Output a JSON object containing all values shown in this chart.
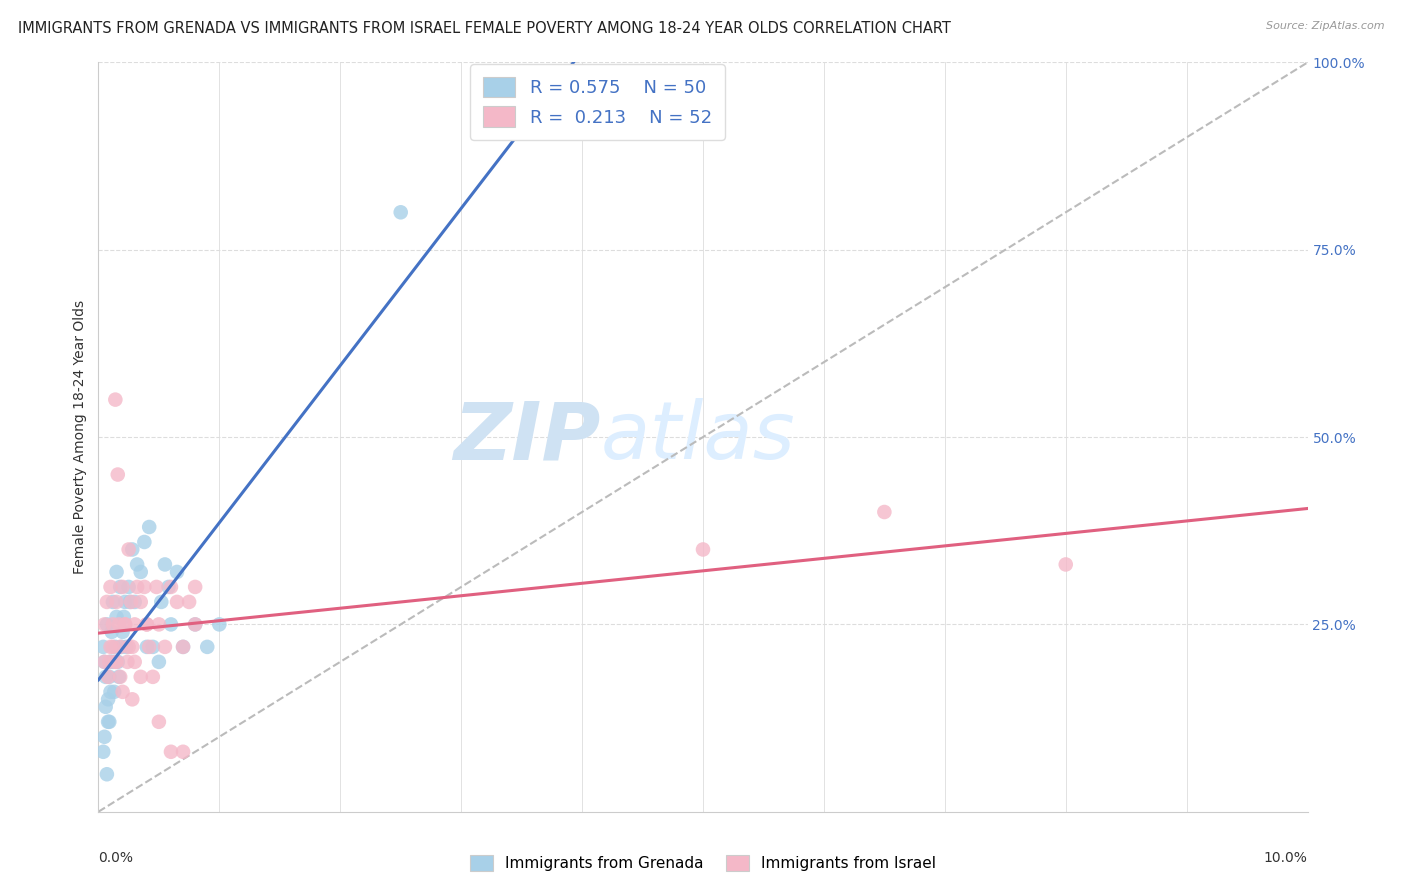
{
  "title": "IMMIGRANTS FROM GRENADA VS IMMIGRANTS FROM ISRAEL FEMALE POVERTY AMONG 18-24 YEAR OLDS CORRELATION CHART",
  "source": "Source: ZipAtlas.com",
  "ylabel": "Female Poverty Among 18-24 Year Olds",
  "xmin": 0.0,
  "xmax": 10.0,
  "ymin": 0.0,
  "ymax": 100.0,
  "grenada_R": 0.575,
  "grenada_N": 50,
  "israel_R": 0.213,
  "israel_N": 52,
  "grenada_color": "#a8d0e8",
  "israel_color": "#f4b8c8",
  "grenada_trend_color": "#4472c4",
  "israel_trend_color": "#e06080",
  "accent_color": "#4472c4",
  "title_fontsize": 10.5,
  "axis_label_fontsize": 10,
  "tick_fontsize": 10,
  "grenada_x": [
    0.04,
    0.05,
    0.06,
    0.07,
    0.08,
    0.09,
    0.1,
    0.11,
    0.12,
    0.13,
    0.14,
    0.15,
    0.16,
    0.17,
    0.18,
    0.19,
    0.2,
    0.21,
    0.22,
    0.23,
    0.25,
    0.26,
    0.28,
    0.3,
    0.32,
    0.35,
    0.38,
    0.4,
    0.42,
    0.45,
    0.5,
    0.52,
    0.55,
    0.58,
    0.6,
    0.65,
    0.7,
    0.8,
    0.9,
    1.0,
    0.04,
    0.05,
    0.06,
    0.07,
    0.09,
    0.1,
    0.08,
    0.12,
    0.15,
    2.5
  ],
  "grenada_y": [
    22,
    20,
    18,
    25,
    15,
    12,
    20,
    24,
    28,
    16,
    22,
    26,
    20,
    18,
    30,
    22,
    24,
    26,
    28,
    22,
    30,
    28,
    35,
    28,
    33,
    32,
    36,
    22,
    38,
    22,
    20,
    28,
    33,
    30,
    25,
    32,
    22,
    25,
    22,
    25,
    8,
    10,
    14,
    5,
    18,
    16,
    12,
    20,
    32,
    80
  ],
  "israel_x": [
    0.05,
    0.07,
    0.09,
    0.1,
    0.12,
    0.14,
    0.15,
    0.17,
    0.18,
    0.2,
    0.22,
    0.24,
    0.25,
    0.27,
    0.28,
    0.3,
    0.32,
    0.35,
    0.38,
    0.4,
    0.42,
    0.45,
    0.48,
    0.5,
    0.55,
    0.6,
    0.65,
    0.7,
    0.75,
    0.8,
    0.05,
    0.08,
    0.1,
    0.12,
    0.15,
    0.18,
    0.2,
    0.22,
    0.25,
    0.28,
    0.3,
    0.35,
    0.4,
    0.5,
    0.6,
    0.7,
    0.8,
    5.0,
    6.5,
    8.0,
    0.14,
    0.16
  ],
  "israel_y": [
    25,
    28,
    20,
    30,
    22,
    20,
    28,
    25,
    22,
    30,
    25,
    20,
    35,
    28,
    22,
    25,
    30,
    28,
    30,
    25,
    22,
    18,
    30,
    25,
    22,
    30,
    28,
    22,
    28,
    25,
    20,
    18,
    22,
    25,
    20,
    18,
    16,
    25,
    22,
    15,
    20,
    18,
    25,
    12,
    8,
    8,
    30,
    35,
    40,
    33,
    55,
    45
  ]
}
